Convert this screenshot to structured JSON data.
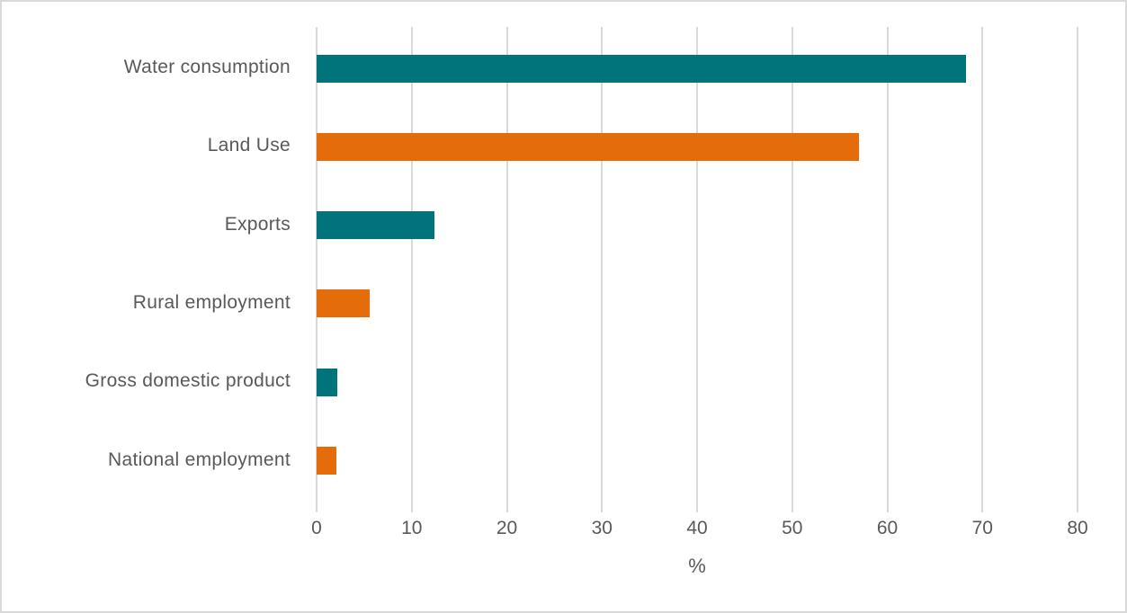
{
  "chart_data": {
    "type": "bar",
    "orientation": "horizontal",
    "title": "",
    "xlabel": "%",
    "ylabel": "",
    "xlim": [
      0,
      80
    ],
    "x_ticks": [
      "0",
      "10",
      "20",
      "30",
      "40",
      "50",
      "60",
      "70",
      "80"
    ],
    "grid": "vertical",
    "legend": "none",
    "categories": [
      "Water consumption",
      "Land Use",
      "Exports",
      "Rural employment",
      "Gross domestic product",
      "National employment"
    ],
    "values": [
      68.3,
      57.0,
      12.4,
      5.6,
      2.2,
      2.1
    ],
    "bar_colors": [
      "#00747A",
      "#E46C0A",
      "#00747A",
      "#E46C0A",
      "#00747A",
      "#E46C0A"
    ]
  }
}
